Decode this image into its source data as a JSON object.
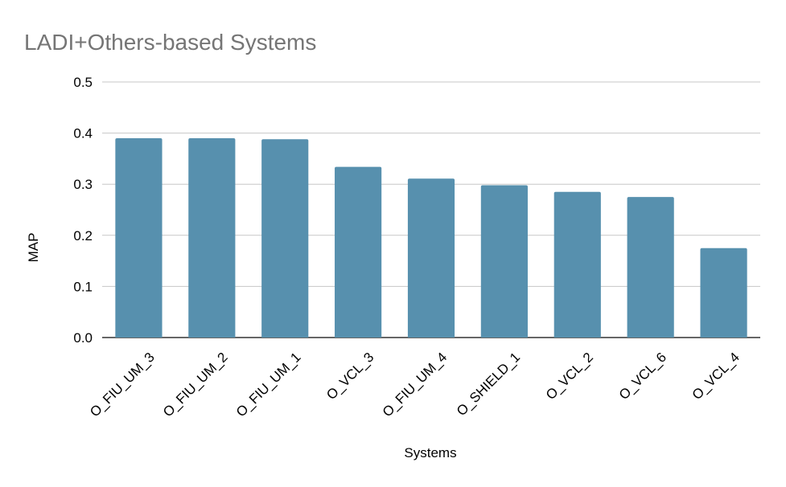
{
  "chart_data": {
    "type": "bar",
    "title": "LADI+Others-based Systems",
    "xlabel": "Systems",
    "ylabel": "MAP",
    "categories": [
      "O_FIU_UM_3",
      "O_FIU_UM_2",
      "O_FIU_UM_1",
      "O_VCL_3",
      "O_FIU_UM_4",
      "O_SHIELD_1",
      "O_VCL_2",
      "O_VCL_6",
      "O_VCL_4"
    ],
    "series": [
      {
        "values": [
          0.39,
          0.39,
          0.388,
          0.334,
          0.311,
          0.298,
          0.285,
          0.275,
          0.175
        ]
      }
    ],
    "ylim": [
      0,
      0.5
    ],
    "yticks": [
      "0.0",
      "0.1",
      "0.2",
      "0.3",
      "0.4",
      "0.5"
    ],
    "grid": true,
    "legend": "none",
    "bar_color": "#5790ae",
    "title_color": "#757575"
  }
}
